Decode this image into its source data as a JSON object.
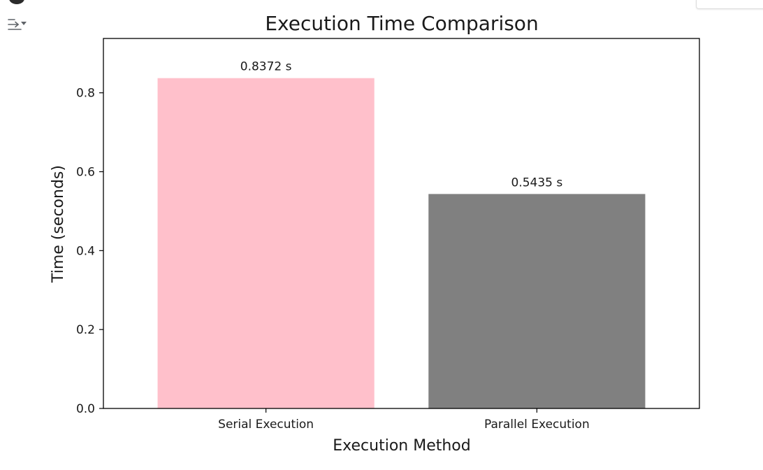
{
  "chart_data": {
    "type": "bar",
    "title": "Execution Time Comparison",
    "xlabel": "Execution Method",
    "ylabel": "Time (seconds)",
    "categories": [
      "Serial Execution",
      "Parallel Execution"
    ],
    "values": [
      0.8372,
      0.5435
    ],
    "value_labels": [
      "0.8372 s",
      "0.5435 s"
    ],
    "colors": [
      "#ffc0cb",
      "#808080"
    ],
    "ylim": [
      0,
      0.9377
    ],
    "yticks": [
      0.0,
      0.2,
      0.4,
      0.6,
      0.8
    ],
    "ytick_labels": [
      "0.0",
      "0.2",
      "0.4",
      "0.6",
      "0.8"
    ],
    "grid": false,
    "legend": "none"
  },
  "ui": {
    "output_toggle_icon": "collapse-output-icon",
    "run_indicator_icon": "cell-status-dot-icon"
  }
}
